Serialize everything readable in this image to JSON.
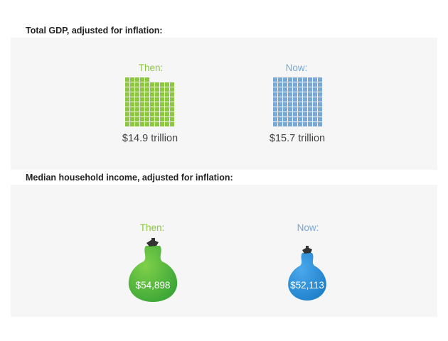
{
  "gdp": {
    "title": "Total GDP, adjusted for inflation:",
    "then": {
      "label": "Then:",
      "value_text": "$14.9 trillion"
    },
    "now": {
      "label": "Now:",
      "value_text": "$15.7 trillion"
    }
  },
  "income": {
    "title": "Median household income, adjusted for inflation:",
    "then": {
      "label": "Then:",
      "value_text": "$54,898"
    },
    "now": {
      "label": "Now:",
      "value_text": "$52,113"
    }
  },
  "colors": {
    "then": "#8dc63f",
    "now": "#7ba7d4",
    "then_bag": "#4db33a",
    "now_bag": "#2b8fd6",
    "panel": "#f6f6f6"
  },
  "chart_data": [
    {
      "type": "bar",
      "title": "Total GDP, adjusted for inflation:",
      "categories": [
        "Then:",
        "Now:"
      ],
      "values": [
        14.9,
        15.7
      ],
      "unit": "trillion USD"
    },
    {
      "type": "bar",
      "title": "Median household income, adjusted for inflation:",
      "categories": [
        "Then:",
        "Now:"
      ],
      "values": [
        54898,
        52113
      ],
      "unit": "USD"
    }
  ]
}
